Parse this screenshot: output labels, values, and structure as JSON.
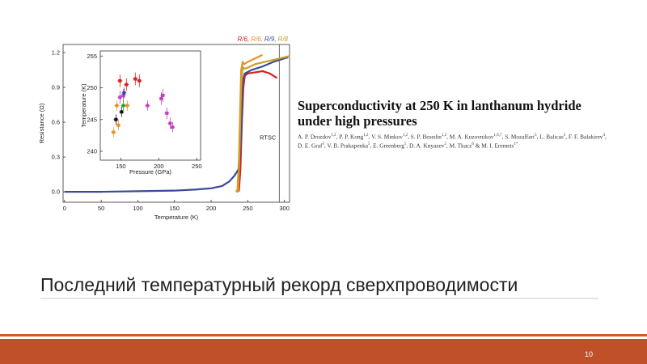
{
  "slide": {
    "title": "Последний температурный рекорд сверхпроводимости",
    "page_number": "10"
  },
  "paper": {
    "title": "Superconductivity at 250 K in lanthanum hydride under high pressures",
    "authors": [
      {
        "name": "A. P. Drozdov",
        "sup": "1,2"
      },
      {
        "name": "P. P. Kong",
        "sup": "1,2"
      },
      {
        "name": "V. S. Minkov",
        "sup": "1,2"
      },
      {
        "name": "S. P. Besedin",
        "sup": "1,2"
      },
      {
        "name": "M. A. Kuzovnikov",
        "sup": "1,6,7"
      },
      {
        "name": "S. Mozaffari",
        "sup": "3"
      },
      {
        "name": "L. Balicas",
        "sup": "3"
      },
      {
        "name": "F. F. Balakirev",
        "sup": "4"
      },
      {
        "name": "D. E. Graf",
        "sup": "3"
      },
      {
        "name": "V. B. Prakapenka",
        "sup": "5"
      },
      {
        "name": "E. Greenberg",
        "sup": "5"
      },
      {
        "name": "D. A. Knyazev",
        "sup": "2"
      },
      {
        "name": "M. Tkacz",
        "sup": "6"
      },
      {
        "name": "M. I. Eremets",
        "sup": "1*"
      }
    ]
  },
  "chart_data": [
    {
      "type": "line",
      "x_label": "Temperature (K)",
      "y_label": "Resistance (Ω)",
      "xlim": [
        -2,
        307
      ],
      "ylim": [
        -0.09,
        1.27
      ],
      "xticks": [
        0,
        50,
        100,
        150,
        200,
        250,
        300
      ],
      "yticks": [
        {
          "value": 0,
          "label": "0.0"
        },
        0.3,
        0.6,
        0.9,
        1.2
      ],
      "annotations": [
        {
          "text": "RTSC",
          "x": 293
        }
      ],
      "series": [
        {
          "name": "R/6,",
          "color": "#d62020",
          "x": [
            235,
            238,
            240,
            242,
            244,
            246,
            250,
            260,
            270,
            280,
            285,
            290
          ],
          "values": [
            0,
            0.01,
            0.2,
            0.6,
            0.9,
            1.0,
            1.02,
            1.03,
            1.04,
            1.02,
            1.0,
            0.98
          ]
        },
        {
          "name": "R/6,",
          "color": "#e8912a",
          "x": [
            234,
            236,
            238,
            240,
            241,
            243,
            245,
            250,
            260,
            270
          ],
          "values": [
            0,
            0.02,
            0.3,
            0.8,
            1.05,
            1.12,
            1.1,
            1.12,
            1.15,
            1.18
          ]
        },
        {
          "name": "R/9,",
          "color": "#3a4a9a",
          "x": [
            0,
            50,
            100,
            150,
            180,
            200,
            215,
            225,
            232,
            238,
            241,
            243,
            246,
            255,
            270,
            285,
            300,
            305
          ],
          "values": [
            0,
            0,
            0.005,
            0.01,
            0.02,
            0.03,
            0.05,
            0.09,
            0.14,
            0.2,
            0.5,
            0.95,
            1.02,
            1.05,
            1.08,
            1.12,
            1.15,
            1.16
          ]
        },
        {
          "name": "R/8",
          "color": "#c9a227",
          "x": [
            234,
            237,
            239,
            241,
            243,
            245,
            250,
            260,
            280,
            300,
            307
          ],
          "values": [
            0,
            0.01,
            0.4,
            0.9,
            1.08,
            1.06,
            1.07,
            1.1,
            1.13,
            1.16,
            1.17
          ]
        }
      ]
    },
    {
      "type": "scatter",
      "x_label": "Pressure (GPa)",
      "y_label": "Temperature (K)",
      "xlim": [
        123,
        255
      ],
      "ylim": [
        238.6,
        255.8
      ],
      "xticks": [
        150,
        200,
        250
      ],
      "yticks": [
        240,
        245,
        250,
        255
      ],
      "series": [
        {
          "color": "#e8912a",
          "x": [
            140.4,
            146.8,
            144.7,
            158.5
          ],
          "values": [
            243.0,
            244.1,
            247.2,
            247.2
          ],
          "errors": [
            0.8,
            0.8,
            0.8,
            0.8
          ]
        },
        {
          "color": "#111111",
          "x": [
            143.6,
            151
          ],
          "values": [
            245,
            246.2
          ],
          "errors": [
            0.8,
            0.8
          ]
        },
        {
          "color": "#d62020",
          "x": [
            148.9,
            157.4,
            169.1,
            174.4
          ],
          "values": [
            251.1,
            250.5,
            251.4,
            251.1
          ],
          "errors": [
            1,
            1,
            1,
            1
          ]
        },
        {
          "color": "#c040c0",
          "x": [
            148.9,
            153.3,
            185.1,
            203.2,
            205.3,
            210.6,
            214.9,
            218.1
          ],
          "values": [
            248.5,
            248.8,
            247.2,
            248.3,
            248.8,
            246.0,
            244.4,
            243.8
          ],
          "errors": [
            1,
            1,
            0.8,
            1,
            1,
            0.9,
            0.9,
            0.8
          ]
        },
        {
          "color": "#2a9a3a",
          "x": [
            153.3
          ],
          "values": [
            247.2
          ],
          "errors": [
            0.8
          ]
        },
        {
          "color": "#3a4a9a",
          "x": [
            154.3
          ],
          "values": [
            249.2
          ],
          "errors": [
            0.8
          ]
        }
      ]
    }
  ]
}
